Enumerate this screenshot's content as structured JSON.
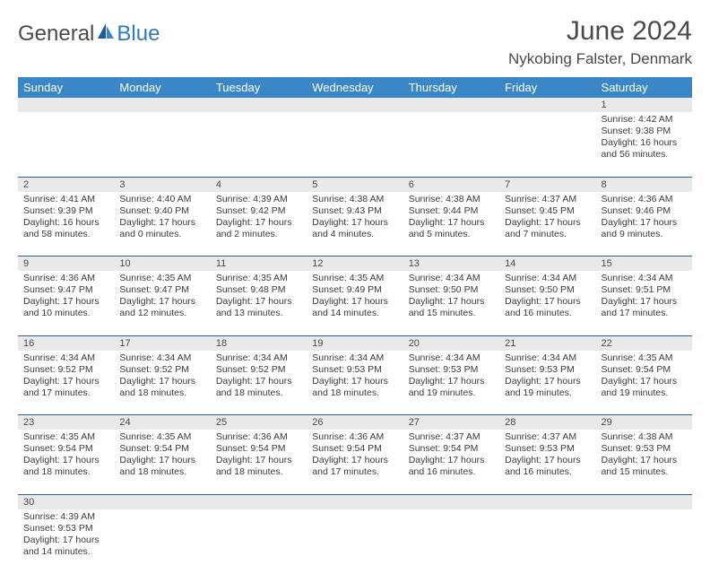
{
  "brand": {
    "general": "General",
    "blue": "Blue"
  },
  "title": {
    "month": "June 2024",
    "location": "Nykobing Falster, Denmark"
  },
  "colors": {
    "header_bg": "#3a87c7",
    "row_divider": "#2d5f8f",
    "daynum_bg": "#e9e9e9"
  },
  "weekdays": [
    "Sunday",
    "Monday",
    "Tuesday",
    "Wednesday",
    "Thursday",
    "Friday",
    "Saturday"
  ],
  "days": {
    "1": {
      "sunrise": "Sunrise: 4:42 AM",
      "sunset": "Sunset: 9:38 PM",
      "daylight": "Daylight: 16 hours and 56 minutes."
    },
    "2": {
      "sunrise": "Sunrise: 4:41 AM",
      "sunset": "Sunset: 9:39 PM",
      "daylight": "Daylight: 16 hours and 58 minutes."
    },
    "3": {
      "sunrise": "Sunrise: 4:40 AM",
      "sunset": "Sunset: 9:40 PM",
      "daylight": "Daylight: 17 hours and 0 minutes."
    },
    "4": {
      "sunrise": "Sunrise: 4:39 AM",
      "sunset": "Sunset: 9:42 PM",
      "daylight": "Daylight: 17 hours and 2 minutes."
    },
    "5": {
      "sunrise": "Sunrise: 4:38 AM",
      "sunset": "Sunset: 9:43 PM",
      "daylight": "Daylight: 17 hours and 4 minutes."
    },
    "6": {
      "sunrise": "Sunrise: 4:38 AM",
      "sunset": "Sunset: 9:44 PM",
      "daylight": "Daylight: 17 hours and 5 minutes."
    },
    "7": {
      "sunrise": "Sunrise: 4:37 AM",
      "sunset": "Sunset: 9:45 PM",
      "daylight": "Daylight: 17 hours and 7 minutes."
    },
    "8": {
      "sunrise": "Sunrise: 4:36 AM",
      "sunset": "Sunset: 9:46 PM",
      "daylight": "Daylight: 17 hours and 9 minutes."
    },
    "9": {
      "sunrise": "Sunrise: 4:36 AM",
      "sunset": "Sunset: 9:47 PM",
      "daylight": "Daylight: 17 hours and 10 minutes."
    },
    "10": {
      "sunrise": "Sunrise: 4:35 AM",
      "sunset": "Sunset: 9:47 PM",
      "daylight": "Daylight: 17 hours and 12 minutes."
    },
    "11": {
      "sunrise": "Sunrise: 4:35 AM",
      "sunset": "Sunset: 9:48 PM",
      "daylight": "Daylight: 17 hours and 13 minutes."
    },
    "12": {
      "sunrise": "Sunrise: 4:35 AM",
      "sunset": "Sunset: 9:49 PM",
      "daylight": "Daylight: 17 hours and 14 minutes."
    },
    "13": {
      "sunrise": "Sunrise: 4:34 AM",
      "sunset": "Sunset: 9:50 PM",
      "daylight": "Daylight: 17 hours and 15 minutes."
    },
    "14": {
      "sunrise": "Sunrise: 4:34 AM",
      "sunset": "Sunset: 9:50 PM",
      "daylight": "Daylight: 17 hours and 16 minutes."
    },
    "15": {
      "sunrise": "Sunrise: 4:34 AM",
      "sunset": "Sunset: 9:51 PM",
      "daylight": "Daylight: 17 hours and 17 minutes."
    },
    "16": {
      "sunrise": "Sunrise: 4:34 AM",
      "sunset": "Sunset: 9:52 PM",
      "daylight": "Daylight: 17 hours and 17 minutes."
    },
    "17": {
      "sunrise": "Sunrise: 4:34 AM",
      "sunset": "Sunset: 9:52 PM",
      "daylight": "Daylight: 17 hours and 18 minutes."
    },
    "18": {
      "sunrise": "Sunrise: 4:34 AM",
      "sunset": "Sunset: 9:52 PM",
      "daylight": "Daylight: 17 hours and 18 minutes."
    },
    "19": {
      "sunrise": "Sunrise: 4:34 AM",
      "sunset": "Sunset: 9:53 PM",
      "daylight": "Daylight: 17 hours and 18 minutes."
    },
    "20": {
      "sunrise": "Sunrise: 4:34 AM",
      "sunset": "Sunset: 9:53 PM",
      "daylight": "Daylight: 17 hours and 19 minutes."
    },
    "21": {
      "sunrise": "Sunrise: 4:34 AM",
      "sunset": "Sunset: 9:53 PM",
      "daylight": "Daylight: 17 hours and 19 minutes."
    },
    "22": {
      "sunrise": "Sunrise: 4:35 AM",
      "sunset": "Sunset: 9:54 PM",
      "daylight": "Daylight: 17 hours and 19 minutes."
    },
    "23": {
      "sunrise": "Sunrise: 4:35 AM",
      "sunset": "Sunset: 9:54 PM",
      "daylight": "Daylight: 17 hours and 18 minutes."
    },
    "24": {
      "sunrise": "Sunrise: 4:35 AM",
      "sunset": "Sunset: 9:54 PM",
      "daylight": "Daylight: 17 hours and 18 minutes."
    },
    "25": {
      "sunrise": "Sunrise: 4:36 AM",
      "sunset": "Sunset: 9:54 PM",
      "daylight": "Daylight: 17 hours and 18 minutes."
    },
    "26": {
      "sunrise": "Sunrise: 4:36 AM",
      "sunset": "Sunset: 9:54 PM",
      "daylight": "Daylight: 17 hours and 17 minutes."
    },
    "27": {
      "sunrise": "Sunrise: 4:37 AM",
      "sunset": "Sunset: 9:54 PM",
      "daylight": "Daylight: 17 hours and 16 minutes."
    },
    "28": {
      "sunrise": "Sunrise: 4:37 AM",
      "sunset": "Sunset: 9:53 PM",
      "daylight": "Daylight: 17 hours and 16 minutes."
    },
    "29": {
      "sunrise": "Sunrise: 4:38 AM",
      "sunset": "Sunset: 9:53 PM",
      "daylight": "Daylight: 17 hours and 15 minutes."
    },
    "30": {
      "sunrise": "Sunrise: 4:39 AM",
      "sunset": "Sunset: 9:53 PM",
      "daylight": "Daylight: 17 hours and 14 minutes."
    }
  },
  "grid": [
    [
      null,
      null,
      null,
      null,
      null,
      null,
      "1"
    ],
    [
      "2",
      "3",
      "4",
      "5",
      "6",
      "7",
      "8"
    ],
    [
      "9",
      "10",
      "11",
      "12",
      "13",
      "14",
      "15"
    ],
    [
      "16",
      "17",
      "18",
      "19",
      "20",
      "21",
      "22"
    ],
    [
      "23",
      "24",
      "25",
      "26",
      "27",
      "28",
      "29"
    ],
    [
      "30",
      null,
      null,
      null,
      null,
      null,
      null
    ]
  ]
}
